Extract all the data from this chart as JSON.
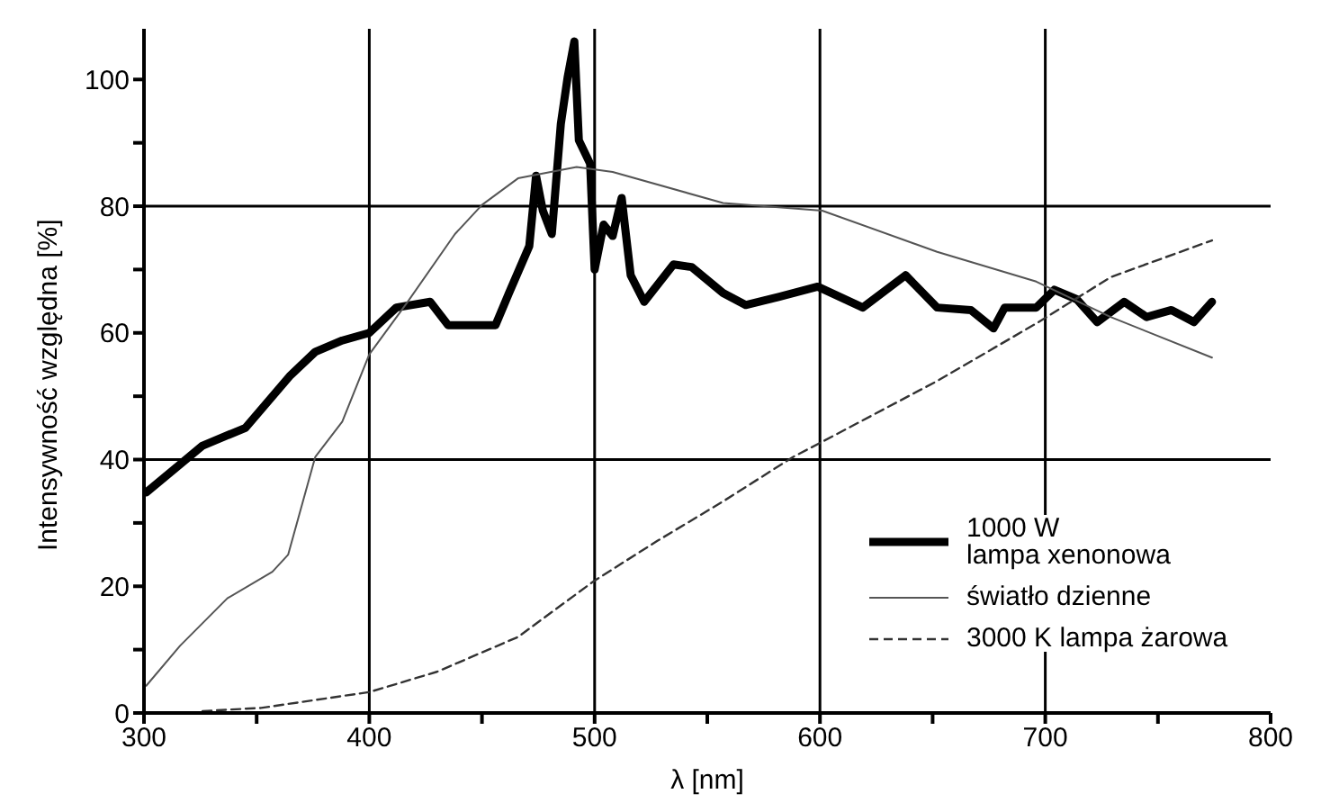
{
  "chart_data": {
    "type": "line",
    "xlabel": "λ [nm]",
    "ylabel": "Intensywność względna [%]",
    "xlim": [
      300,
      800
    ],
    "ylim": [
      0,
      108
    ],
    "xticks": [
      300,
      {
        "value": 350,
        "label": null
      },
      400,
      {
        "value": 450,
        "label": null
      },
      500,
      {
        "value": 550,
        "label": null
      },
      600,
      {
        "value": 650,
        "label": null
      },
      700,
      {
        "value": 750,
        "label": null
      },
      800
    ],
    "yticks": [
      0,
      {
        "value": 10,
        "label": null
      },
      20,
      {
        "value": 30,
        "label": null
      },
      40,
      {
        "value": 50,
        "label": null
      },
      60,
      {
        "value": 70,
        "label": null
      },
      80,
      {
        "value": 90,
        "label": null
      },
      100
    ],
    "legend": "bottom right",
    "marker": "none",
    "grid": false,
    "ref_lines": [
      {
        "axis": "y",
        "value": 40,
        "color": "#000000"
      },
      {
        "axis": "y",
        "value": 80,
        "color": "#000000"
      },
      {
        "axis": "x",
        "value": 400,
        "color": "#000000"
      },
      {
        "axis": "x",
        "value": 500,
        "color": "#000000"
      },
      {
        "axis": "x",
        "value": 600,
        "color": "#000000"
      },
      {
        "axis": "x",
        "value": 700,
        "color": "#000000"
      }
    ],
    "series": [
      {
        "name": "1000 W\nlampa xenonowa",
        "color": "#000000",
        "line_style": "solid",
        "x": [
          301,
          326,
          345,
          365,
          376,
          388,
          400,
          412,
          427,
          435,
          456,
          462,
          471,
          474,
          477,
          481,
          485,
          488,
          491,
          493,
          498,
          500,
          504,
          508,
          512,
          516,
          522,
          535,
          543,
          557,
          567,
          582,
          599,
          619,
          638,
          652,
          667,
          677,
          682,
          696,
          704,
          714,
          723,
          735,
          745,
          756,
          766,
          774
        ],
        "values": [
          34.8,
          42.2,
          45,
          53.3,
          57,
          58.8,
          60,
          64,
          64.9,
          61.2,
          61.2,
          66.3,
          73.7,
          84.8,
          79.3,
          75.6,
          93,
          100.3,
          106,
          90.4,
          86.7,
          70,
          77.1,
          75.3,
          81.3,
          69.1,
          64.9,
          70.8,
          70.4,
          66.3,
          64.4,
          65.7,
          67.3,
          64,
          69.1,
          64,
          63.6,
          60.7,
          64,
          64,
          66.8,
          65.3,
          61.7,
          64.9,
          62.5,
          63.6,
          61.7,
          64.9
        ]
      },
      {
        "name": "światło dzienne",
        "color": "#555555",
        "line_style": "solid",
        "x": [
          301,
          316,
          337,
          357,
          364,
          376,
          388,
          400,
          417,
          438,
          450,
          466,
          492,
          508,
          557,
          601,
          652,
          696,
          729,
          774
        ],
        "values": [
          4.3,
          10.6,
          18.1,
          22.3,
          25,
          40.4,
          46,
          56.6,
          64.9,
          75.6,
          80.2,
          84.4,
          86.2,
          85.4,
          80.5,
          79.3,
          72.8,
          68.1,
          62.5,
          56.1
        ]
      },
      {
        "name": "3000 K   lampa żarowa",
        "color": "#333333",
        "line_style": "dashed",
        "x": [
          326,
          352,
          400,
          430,
          466,
          500,
          528,
          557,
          588,
          602,
          652,
          697,
          729,
          774
        ],
        "values": [
          0.3,
          0.8,
          3.3,
          6.5,
          12,
          20.9,
          27.2,
          33.4,
          40.4,
          43,
          52.4,
          61.7,
          68.8,
          74.6
        ]
      }
    ]
  }
}
